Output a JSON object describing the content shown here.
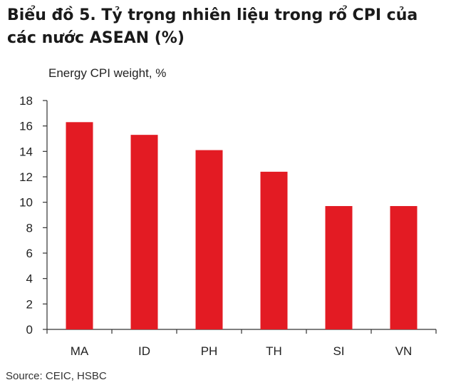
{
  "header": {
    "title_line1": "Biểu đồ 5. Tỷ trọng nhiên liệu trong rổ CPI của",
    "title_line2": "các nước ASEAN (%)"
  },
  "footer": {
    "source": "Source:  CEIC, HSBC"
  },
  "chart_data": {
    "type": "bar",
    "title": "Biểu đồ 5. Tỷ trọng nhiên liệu trong rổ CPI của các nước ASEAN (%)",
    "ylabel": "Energy CPI weight,  %",
    "xlabel": "",
    "categories": [
      "MA",
      "ID",
      "PH",
      "TH",
      "SI",
      "VN"
    ],
    "values": [
      16.3,
      15.3,
      14.1,
      12.4,
      9.7,
      9.7
    ],
    "ylim": [
      0,
      18
    ],
    "yticks": [
      0,
      2,
      4,
      6,
      8,
      10,
      12,
      14,
      16,
      18
    ],
    "grid": false,
    "bar_color": "#e31b23",
    "source": "Source:  CEIC, HSBC"
  }
}
